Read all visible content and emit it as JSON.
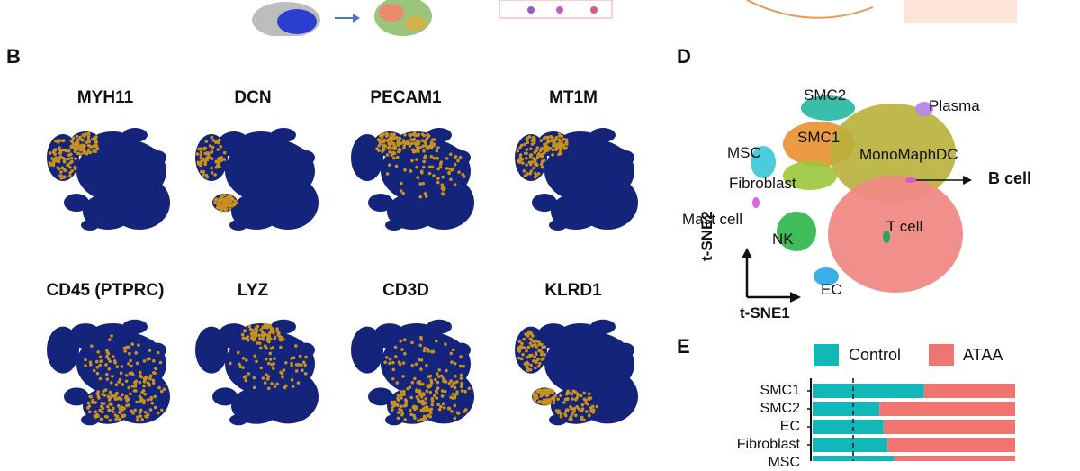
{
  "panels": {
    "b": {
      "letter": "B"
    },
    "d": {
      "letter": "D"
    },
    "e": {
      "letter": "E"
    }
  },
  "genes": [
    "MYH11",
    "DCN",
    "PECAM1",
    "MT1M",
    "CD45 (PTPRC)",
    "LYZ",
    "CD3D",
    "KLRD1"
  ],
  "tsne": {
    "clusters": [
      "SMC2",
      "Plasma",
      "SMC1",
      "MSC",
      "MonoMaphDC",
      "B cell",
      "Fibroblast",
      "Mast cell",
      "T cell",
      "NK",
      "EC"
    ],
    "axis_y": "t-SNE2",
    "axis_x": "t-SNE1"
  },
  "colors": {
    "expr_low": "#14247a",
    "expr_high": "#c8911e",
    "control": "#12b8b8",
    "ataa": "#f07570"
  },
  "chart_data": {
    "type": "bar",
    "orientation": "horizontal-stacked",
    "legend": [
      "Control",
      "ATAA"
    ],
    "categories": [
      "SMC1",
      "SMC2",
      "EC",
      "Fibroblast",
      "MSC"
    ],
    "series": [
      {
        "name": "Control",
        "values": [
          0.55,
          0.33,
          0.35,
          0.37,
          0.4
        ]
      },
      {
        "name": "ATAA",
        "values": [
          0.45,
          0.67,
          0.65,
          0.63,
          0.6
        ]
      }
    ],
    "xlim": [
      0,
      1
    ],
    "reference_line": 0.2
  }
}
